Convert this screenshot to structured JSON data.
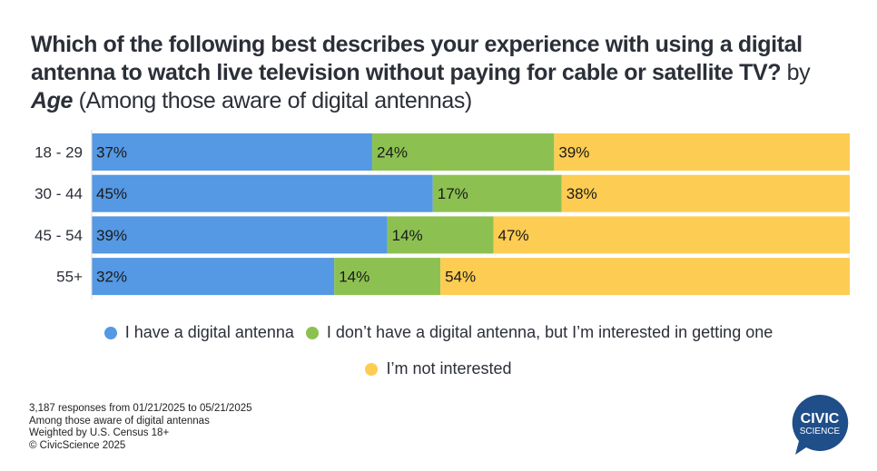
{
  "title": {
    "question": "Which of the following best describes your experience with using a digital antenna to watch live television without paying for cable or satellite TV?",
    "by": "by",
    "dimension": "Age",
    "subtitle": "(Among those aware of digital antennas)"
  },
  "chart_data": {
    "type": "bar",
    "orientation": "horizontal",
    "stacked": true,
    "normalized_percent": true,
    "title": "Which of the following best describes your experience with using a digital antenna to watch live television without paying for cable or satellite TV? by Age (Among those aware of digital antennas)",
    "xlabel": "",
    "ylabel": "",
    "xlim": [
      0,
      100
    ],
    "grid": false,
    "legend_position": "bottom",
    "categories": [
      "18 - 29",
      "30 - 44",
      "45 - 54",
      "55+"
    ],
    "series": [
      {
        "name": "I have a digital antenna",
        "color": "#5598e3",
        "values": [
          37,
          45,
          39,
          32
        ],
        "labels": [
          "37%",
          "45%",
          "39%",
          "32%"
        ]
      },
      {
        "name": "I don’t have a digital antenna, but I’m interested in getting one",
        "color": "#8cc152",
        "values": [
          24,
          17,
          14,
          14
        ],
        "labels": [
          "24%",
          "17%",
          "14%",
          "14%"
        ]
      },
      {
        "name": "I’m not interested",
        "color": "#fdcc52",
        "values": [
          39,
          38,
          47,
          54
        ],
        "labels": [
          "39%",
          "38%",
          "47%",
          "54%"
        ]
      }
    ]
  },
  "legend": {
    "items": [
      {
        "label": "I have a digital antenna",
        "color": "#5598e3"
      },
      {
        "label": "I don’t have a digital antenna, but I’m interested in getting one",
        "color": "#8cc152"
      },
      {
        "label": "I’m not interested",
        "color": "#fdcc52"
      }
    ]
  },
  "footer": {
    "lines": [
      "3,187 responses from 01/21/2025 to 05/21/2025",
      "Among those aware of digital antennas",
      "Weighted by U.S. Census 18+",
      "© CivicScience 2025"
    ]
  },
  "logo": {
    "line1": "CIVIC",
    "line2": "SCIENCE",
    "color": "#1f4e89"
  }
}
